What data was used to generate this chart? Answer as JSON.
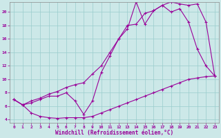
{
  "xlabel": "Windchill (Refroidissement éolien,°C)",
  "bg_color": "#cce8e8",
  "line_color": "#990099",
  "grid_color": "#99cccc",
  "xlim": [
    -0.5,
    23.5
  ],
  "ylim": [
    3.5,
    21.5
  ],
  "yticks": [
    4,
    6,
    8,
    10,
    12,
    14,
    16,
    18,
    20
  ],
  "xticks": [
    0,
    1,
    2,
    3,
    4,
    5,
    6,
    7,
    8,
    9,
    10,
    11,
    12,
    13,
    14,
    15,
    16,
    17,
    18,
    19,
    20,
    21,
    22,
    23
  ],
  "line1_x": [
    0,
    1,
    2,
    3,
    4,
    5,
    6,
    7,
    8,
    9,
    10,
    11,
    12,
    13,
    14,
    15,
    16,
    17,
    18,
    19,
    20,
    21,
    22,
    23
  ],
  "line1_y": [
    7.0,
    6.2,
    5.0,
    4.5,
    4.3,
    4.2,
    4.3,
    4.3,
    4.3,
    4.5,
    5.0,
    5.5,
    6.0,
    6.5,
    7.0,
    7.5,
    8.0,
    8.5,
    9.0,
    9.5,
    10.0,
    10.2,
    10.4,
    10.5
  ],
  "line2_x": [
    0,
    1,
    2,
    3,
    4,
    5,
    6,
    7,
    8,
    9,
    10,
    11,
    12,
    13,
    14,
    15,
    16,
    17,
    18,
    19,
    20,
    21,
    22,
    23
  ],
  "line2_y": [
    7.0,
    6.2,
    6.5,
    7.0,
    7.5,
    7.5,
    8.0,
    6.8,
    4.8,
    6.8,
    11.0,
    13.5,
    16.0,
    17.5,
    21.5,
    18.2,
    20.2,
    21.0,
    20.0,
    20.5,
    18.5,
    14.5,
    12.0,
    10.5
  ],
  "line3_x": [
    0,
    1,
    2,
    3,
    4,
    5,
    6,
    7,
    8,
    9,
    10,
    11,
    12,
    13,
    14,
    15,
    16,
    17,
    18,
    19,
    20,
    21,
    22,
    23
  ],
  "line3_y": [
    7.0,
    6.2,
    6.8,
    7.2,
    7.8,
    8.2,
    8.8,
    9.2,
    9.5,
    10.8,
    12.0,
    14.0,
    16.0,
    18.0,
    18.2,
    19.8,
    20.2,
    21.0,
    21.5,
    21.2,
    21.0,
    21.2,
    18.5,
    10.5
  ]
}
